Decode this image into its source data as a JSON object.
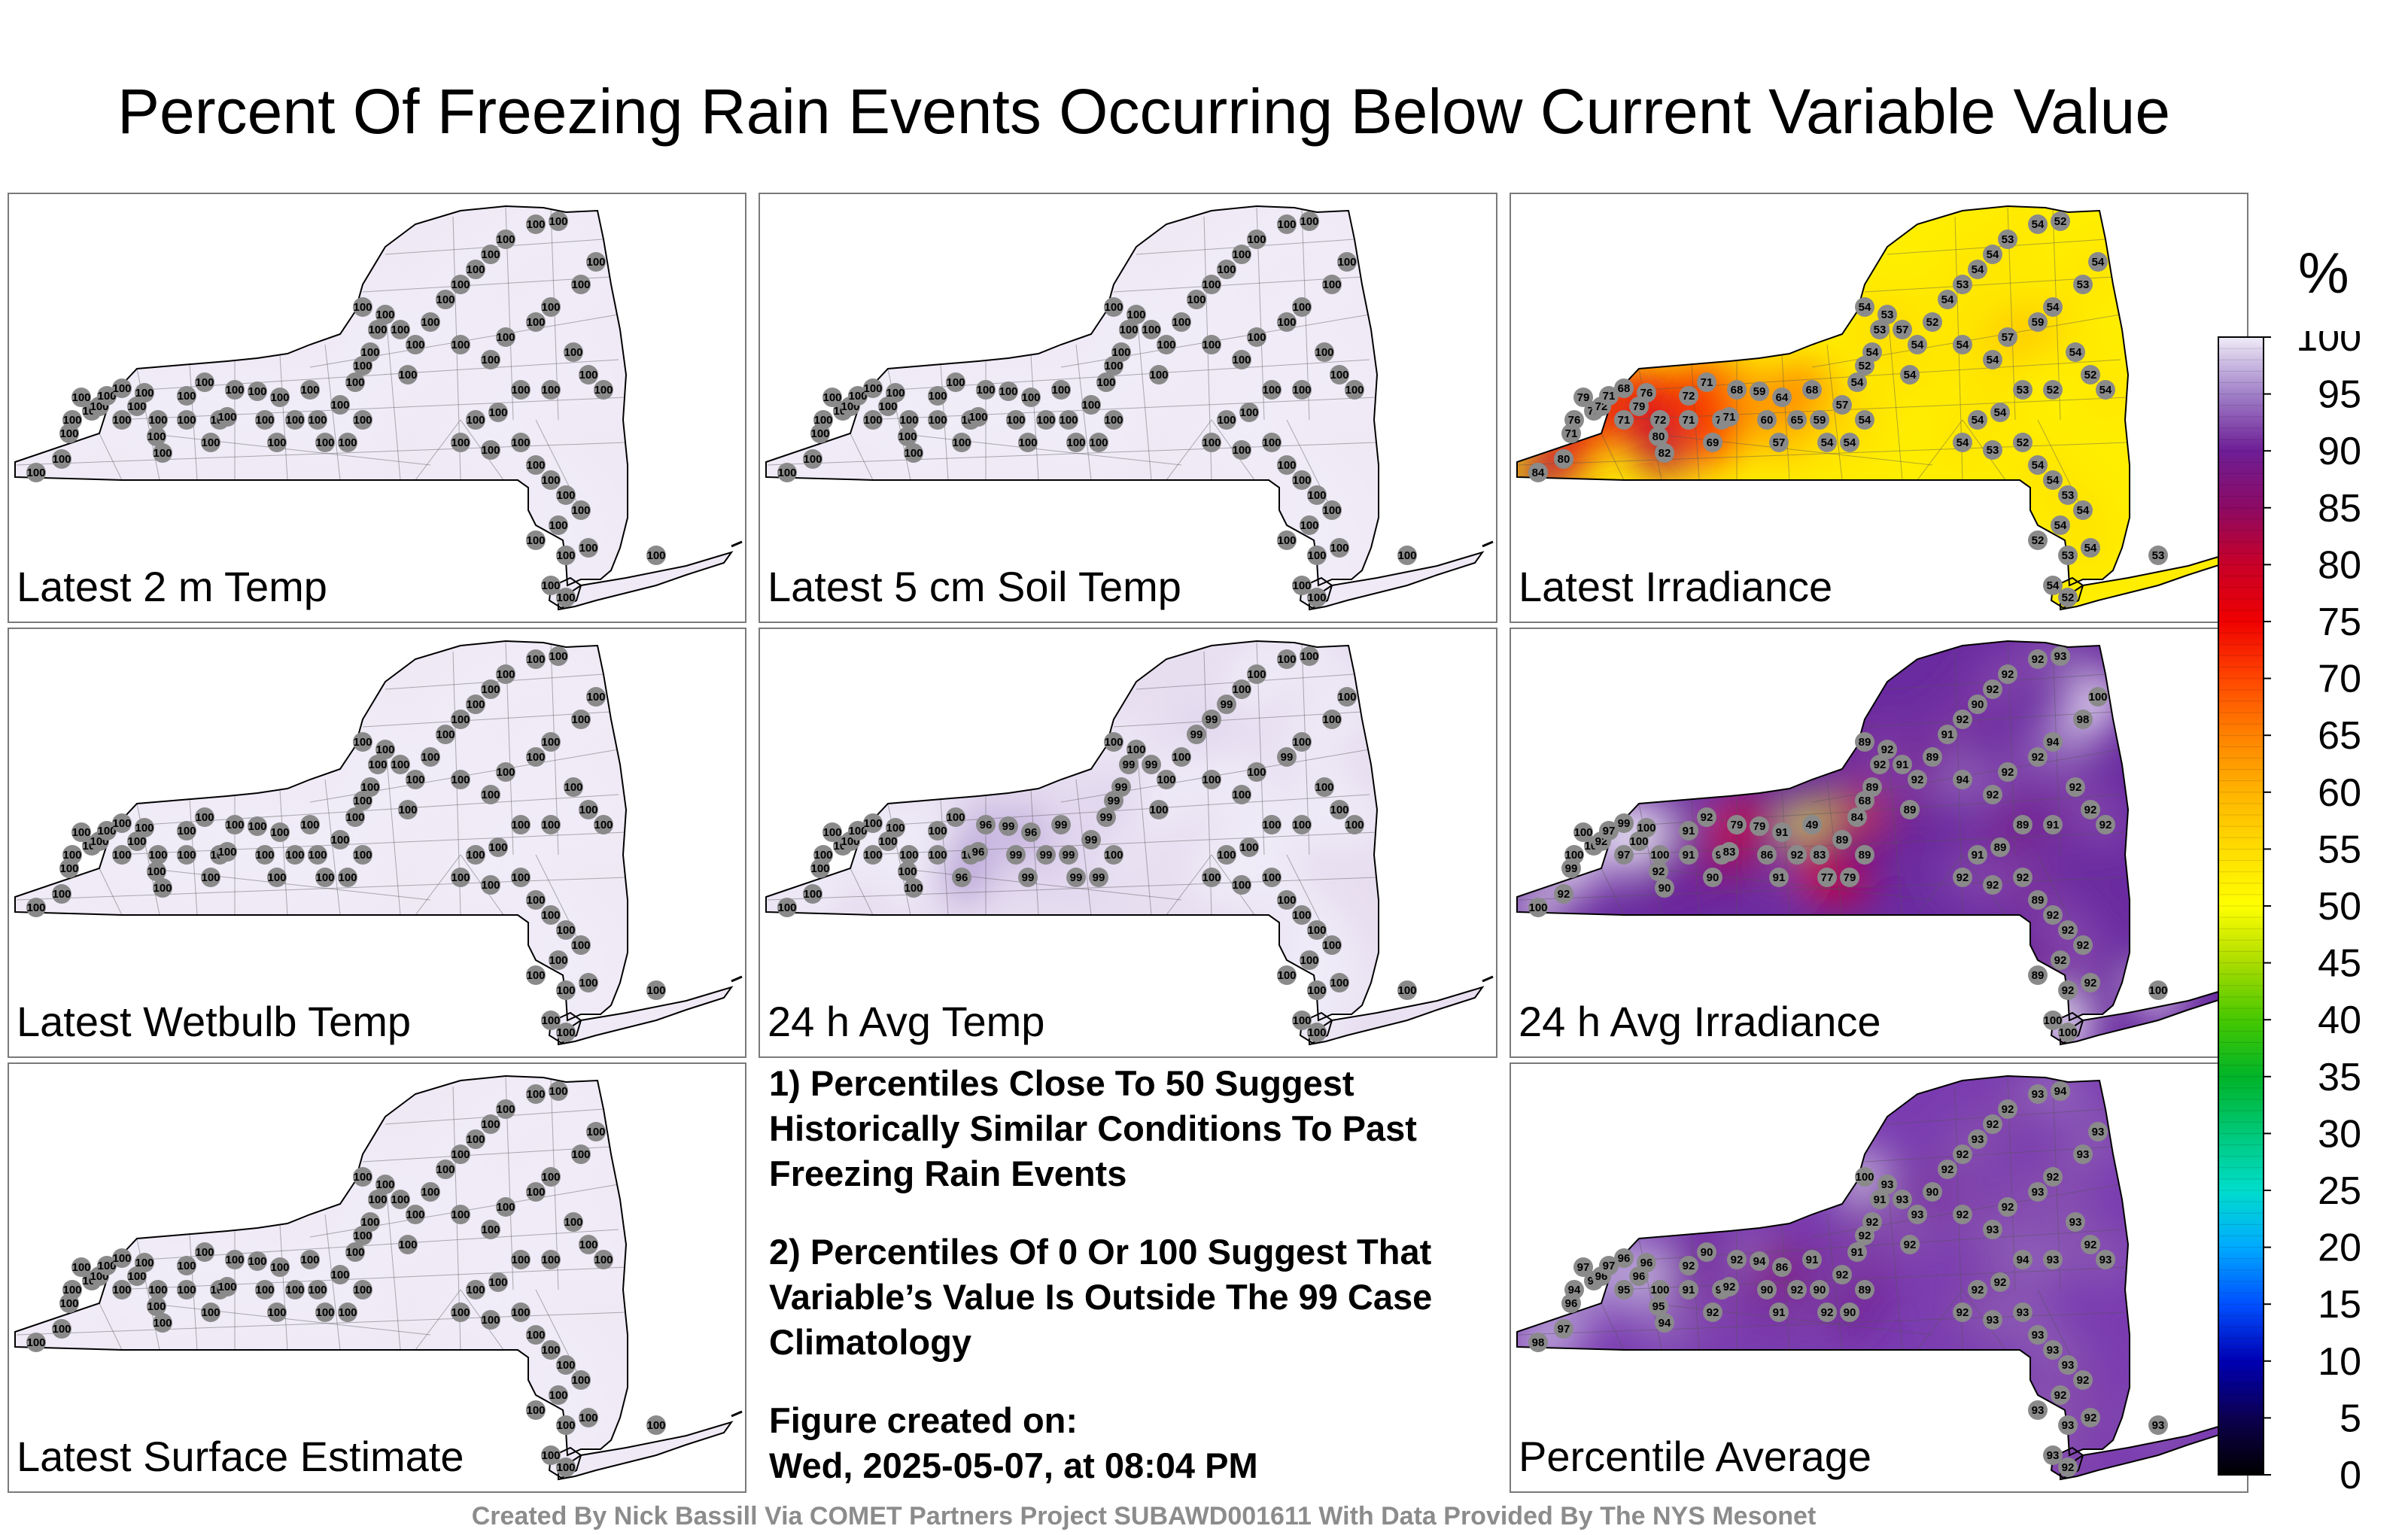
{
  "title": "Percent Of Freezing Rain Events Occurring Below Current Variable Value",
  "panels": [
    {
      "label": "Latest 2 m Temp",
      "fill": "#efe9f5",
      "values": [
        100,
        100,
        100,
        100,
        100,
        100,
        100,
        100,
        100,
        100,
        100,
        100,
        100,
        100,
        100,
        100,
        100,
        100,
        100,
        100,
        100,
        100,
        100,
        100,
        100,
        100,
        100,
        100,
        100,
        100,
        100,
        100,
        100,
        100,
        100,
        100,
        100,
        100,
        100,
        100,
        100,
        100,
        100,
        100,
        100,
        100,
        100,
        100,
        100,
        100,
        100,
        100,
        100,
        100,
        100,
        100,
        100,
        100,
        100,
        100,
        100,
        100,
        100,
        100,
        100,
        100,
        100,
        100,
        100,
        100,
        100,
        100,
        100,
        100,
        100,
        100,
        100,
        100
      ]
    },
    {
      "label": "Latest 5 cm Soil Temp",
      "fill": "#efe9f5",
      "values": [
        100,
        100,
        100,
        100,
        100,
        100,
        100,
        100,
        100,
        100,
        100,
        100,
        100,
        100,
        100,
        100,
        100,
        100,
        100,
        100,
        100,
        100,
        100,
        100,
        100,
        100,
        100,
        100,
        100,
        100,
        100,
        100,
        100,
        100,
        100,
        100,
        100,
        100,
        100,
        100,
        100,
        100,
        100,
        100,
        100,
        100,
        100,
        100,
        100,
        100,
        100,
        100,
        100,
        100,
        100,
        100,
        100,
        100,
        100,
        100,
        100,
        100,
        100,
        100,
        100,
        100,
        100,
        100,
        100,
        100,
        100,
        100,
        100,
        100,
        100,
        100,
        100,
        100
      ]
    },
    {
      "label": "Latest Irradiance",
      "fill": "#ffee00",
      "values": [
        84,
        80,
        71,
        76,
        78,
        79,
        72,
        71,
        68,
        71,
        79,
        76,
        72,
        80,
        82,
        71,
        72,
        71,
        71,
        69,
        71,
        68,
        59,
        60,
        57,
        65,
        64,
        68,
        59,
        54,
        54,
        54,
        57,
        54,
        52,
        54,
        53,
        54,
        53,
        57,
        54,
        54,
        52,
        54,
        53,
        54,
        54,
        53,
        54,
        52,
        54,
        54,
        57,
        59,
        54,
        53,
        54,
        54,
        52,
        54,
        52,
        53,
        54,
        54,
        54,
        53,
        52,
        54,
        54,
        53,
        54,
        54,
        52,
        53,
        54,
        53,
        54,
        52
      ]
    },
    {
      "label": "Latest Wetbulb Temp",
      "fill": "#efe9f5",
      "values": [
        100,
        100,
        100,
        100,
        100,
        100,
        100,
        100,
        100,
        100,
        100,
        100,
        100,
        100,
        100,
        100,
        100,
        100,
        100,
        100,
        100,
        100,
        100,
        100,
        100,
        100,
        100,
        100,
        100,
        100,
        100,
        100,
        100,
        100,
        100,
        100,
        100,
        100,
        100,
        100,
        100,
        100,
        100,
        100,
        100,
        100,
        100,
        100,
        100,
        100,
        100,
        100,
        100,
        100,
        100,
        100,
        100,
        100,
        100,
        100,
        100,
        100,
        100,
        100,
        100,
        100,
        100,
        100,
        100,
        100,
        100,
        100,
        100,
        100,
        100,
        100,
        100,
        100
      ]
    },
    {
      "label": "24 h Avg Temp",
      "fill": "#e7def0",
      "values": [
        100,
        100,
        100,
        100,
        100,
        100,
        100,
        100,
        100,
        100,
        100,
        100,
        100,
        100,
        100,
        100,
        100,
        100,
        100,
        96,
        96,
        96,
        99,
        99,
        99,
        99,
        96,
        99,
        99,
        99,
        99,
        100,
        99,
        99,
        99,
        99,
        99,
        100,
        100,
        99,
        100,
        100,
        100,
        99,
        99,
        99,
        100,
        100,
        100,
        100,
        100,
        100,
        100,
        99,
        100,
        100,
        100,
        100,
        100,
        100,
        100,
        100,
        100,
        100,
        100,
        100,
        100,
        100,
        100,
        100,
        100,
        100,
        100,
        100,
        100,
        100,
        100,
        100
      ]
    },
    {
      "label": "24 h Avg Irradiance",
      "fill": "#6a2ba0",
      "values": [
        100,
        92,
        99,
        100,
        100,
        100,
        92,
        97,
        99,
        97,
        100,
        100,
        100,
        92,
        90,
        91,
        91,
        92,
        92,
        90,
        83,
        79,
        79,
        86,
        91,
        92,
        91,
        49,
        83,
        77,
        79,
        89,
        89,
        84,
        68,
        89,
        92,
        89,
        92,
        91,
        89,
        92,
        89,
        91,
        92,
        90,
        92,
        92,
        92,
        93,
        94,
        92,
        92,
        92,
        94,
        98,
        100,
        92,
        92,
        92,
        91,
        89,
        89,
        91,
        92,
        92,
        92,
        89,
        92,
        92,
        92,
        92,
        89,
        92,
        92,
        100,
        100,
        100
      ]
    },
    {
      "label": "Latest Surface Estimate",
      "fill": "#efe9f5",
      "values": [
        100,
        100,
        100,
        100,
        100,
        100,
        100,
        100,
        100,
        100,
        100,
        100,
        100,
        100,
        100,
        100,
        100,
        100,
        100,
        100,
        100,
        100,
        100,
        100,
        100,
        100,
        100,
        100,
        100,
        100,
        100,
        100,
        100,
        100,
        100,
        100,
        100,
        100,
        100,
        100,
        100,
        100,
        100,
        100,
        100,
        100,
        100,
        100,
        100,
        100,
        100,
        100,
        100,
        100,
        100,
        100,
        100,
        100,
        100,
        100,
        100,
        100,
        100,
        100,
        100,
        100,
        100,
        100,
        100,
        100,
        100,
        100,
        100,
        100,
        100,
        100,
        100,
        100
      ]
    },
    {
      "label": "Percentile Average",
      "fill": "#7a3cb0",
      "values": [
        98,
        97,
        96,
        94,
        96,
        97,
        96,
        97,
        96,
        95,
        96,
        96,
        100,
        95,
        94,
        91,
        92,
        90,
        90,
        92,
        92,
        92,
        94,
        90,
        91,
        92,
        86,
        91,
        90,
        92,
        90,
        89,
        92,
        91,
        92,
        92,
        91,
        100,
        93,
        93,
        92,
        93,
        90,
        92,
        92,
        93,
        92,
        92,
        93,
        94,
        92,
        93,
        92,
        93,
        92,
        93,
        93,
        93,
        92,
        93,
        93,
        94,
        92,
        92,
        92,
        93,
        93,
        93,
        93,
        93,
        92,
        92,
        93,
        93,
        92,
        93,
        93,
        92
      ]
    }
  ],
  "notes": {
    "line1": "1) Percentiles Close To 50 Suggest Historically Similar Conditions To Past Freezing Rain Events",
    "line2": "2) Percentiles Of 0 Or 100 Suggest That Variable’s Value Is Outside The 99 Case Climatology",
    "created_label": "Figure created on:",
    "created_date": "Wed, 2025-05-07, at 08:04 PM"
  },
  "colorbar": {
    "unit": "%",
    "ticks": [
      "0",
      "5",
      "10",
      "15",
      "20",
      "25",
      "30",
      "35",
      "40",
      "45",
      "50",
      "55",
      "60",
      "65",
      "70",
      "75",
      "80",
      "85",
      "90",
      "95",
      "100"
    ],
    "colors": [
      "#000000",
      "#0c0050",
      "#0000b4",
      "#0050ff",
      "#00aaff",
      "#00ddcc",
      "#00c878",
      "#00b428",
      "#46c800",
      "#aadc00",
      "#ffff00",
      "#ffdc00",
      "#ffb400",
      "#ff8200",
      "#ff4600",
      "#f00000",
      "#c80028",
      "#8c0a64",
      "#6e1e96",
      "#a080c8",
      "#f0ecf8"
    ]
  },
  "footer": "Created By Nick Bassill Via COMET Partners Project SUBAWD001611 With Data Provided By The NYS Mesonet"
}
